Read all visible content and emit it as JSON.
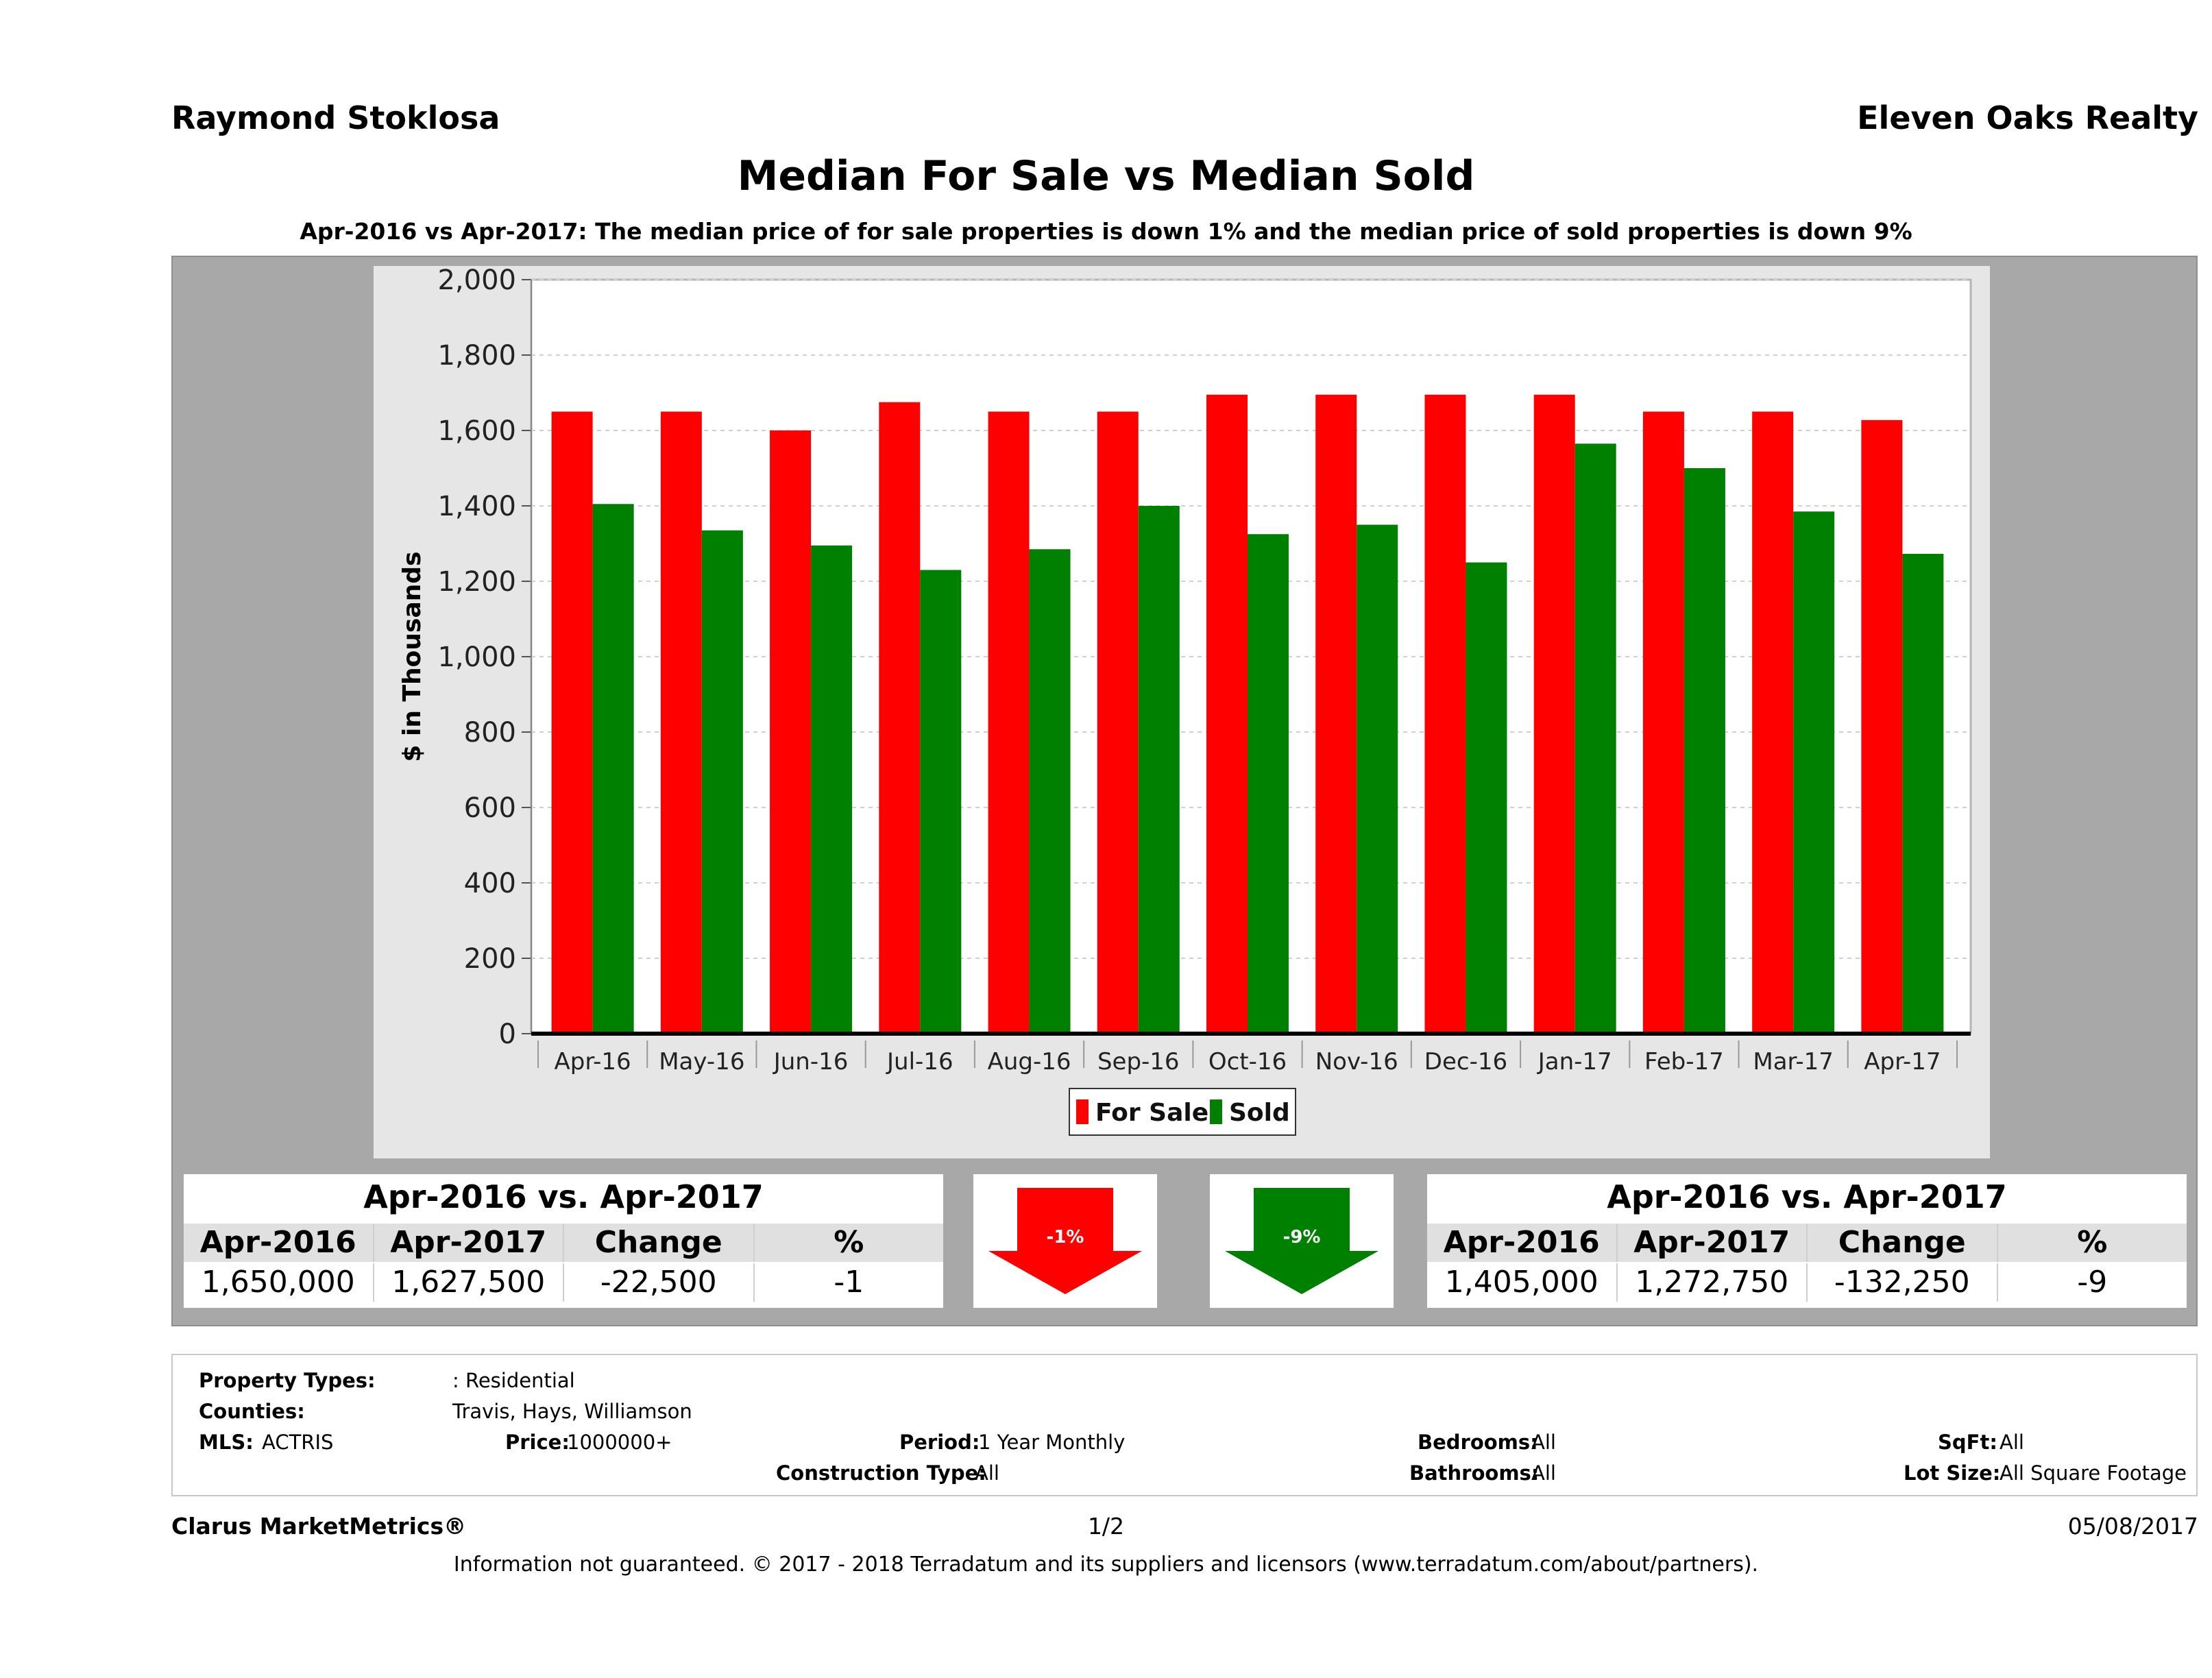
{
  "header": {
    "agent": "Raymond Stoklosa",
    "brokerage": "Eleven Oaks Realty"
  },
  "chart_data": {
    "type": "bar",
    "title": "Median For Sale vs Median Sold",
    "subtitle": "Apr-2016 vs Apr-2017: The median price of for sale properties is down 1% and the median price of sold properties is down 9%",
    "ylabel": "$ in Thousands",
    "xlabel": "",
    "ylim": [
      0,
      2000
    ],
    "yticks": [
      "0",
      "200",
      "400",
      "600",
      "800",
      "1,000",
      "1,200",
      "1,400",
      "1,600",
      "1,800",
      "2,000"
    ],
    "categories": [
      "Apr-16",
      "May-16",
      "Jun-16",
      "Jul-16",
      "Aug-16",
      "Sep-16",
      "Oct-16",
      "Nov-16",
      "Dec-16",
      "Jan-17",
      "Feb-17",
      "Mar-17",
      "Apr-17"
    ],
    "series": [
      {
        "name": "For Sale",
        "color": "#ff0000",
        "values": [
          1650,
          1650,
          1600,
          1675,
          1650,
          1650,
          1695,
          1695,
          1695,
          1695,
          1650,
          1650,
          1627.5
        ]
      },
      {
        "name": "Sold",
        "color": "#008000",
        "values": [
          1405,
          1335,
          1295,
          1230,
          1285,
          1400,
          1325,
          1350,
          1250,
          1565,
          1500,
          1385,
          1272.75
        ]
      }
    ],
    "grid": true,
    "legend_position": "bottom"
  },
  "for_sale_stats": {
    "title": "Apr-2016 vs. Apr-2017",
    "headers": [
      "Apr-2016",
      "Apr-2017",
      "Change",
      "%"
    ],
    "values": [
      "1,650,000",
      "1,627,500",
      "-22,500",
      "-1"
    ]
  },
  "sold_stats": {
    "title": "Apr-2016 vs. Apr-2017",
    "headers": [
      "Apr-2016",
      "Apr-2017",
      "Change",
      "%"
    ],
    "values": [
      "1,405,000",
      "1,272,750",
      "-132,250",
      "-9"
    ]
  },
  "arrows": {
    "for_sale_pct": "-1%",
    "for_sale_color": "#ff0000",
    "sold_pct": "-9%",
    "sold_color": "#008000"
  },
  "criteria": {
    "property_types_label": "Property Types:",
    "property_types_value": ": Residential",
    "counties_label": "Counties:",
    "counties_value": "Travis, Hays, Williamson",
    "mls_label": "MLS:",
    "mls_value": "ACTRIS",
    "price_label": "Price:",
    "price_value": "1000000+",
    "period_label": "Period:",
    "period_value": "1 Year Monthly",
    "construction_label": "Construction Type:",
    "construction_value": "All",
    "bedrooms_label": "Bedrooms:",
    "bedrooms_value": "All",
    "bathrooms_label": "Bathrooms:",
    "bathrooms_value": "All",
    "sqft_label": "SqFt:",
    "sqft_value": "All",
    "lot_label": "Lot Size:",
    "lot_value": "All Square Footage"
  },
  "footer": {
    "brand": "Clarus MarketMetrics®",
    "page": "1/2",
    "date": "05/08/2017",
    "disclaimer": "Information not guaranteed. © 2017 - 2018 Terradatum and its suppliers and licensors (www.terradatum.com/about/partners)."
  }
}
